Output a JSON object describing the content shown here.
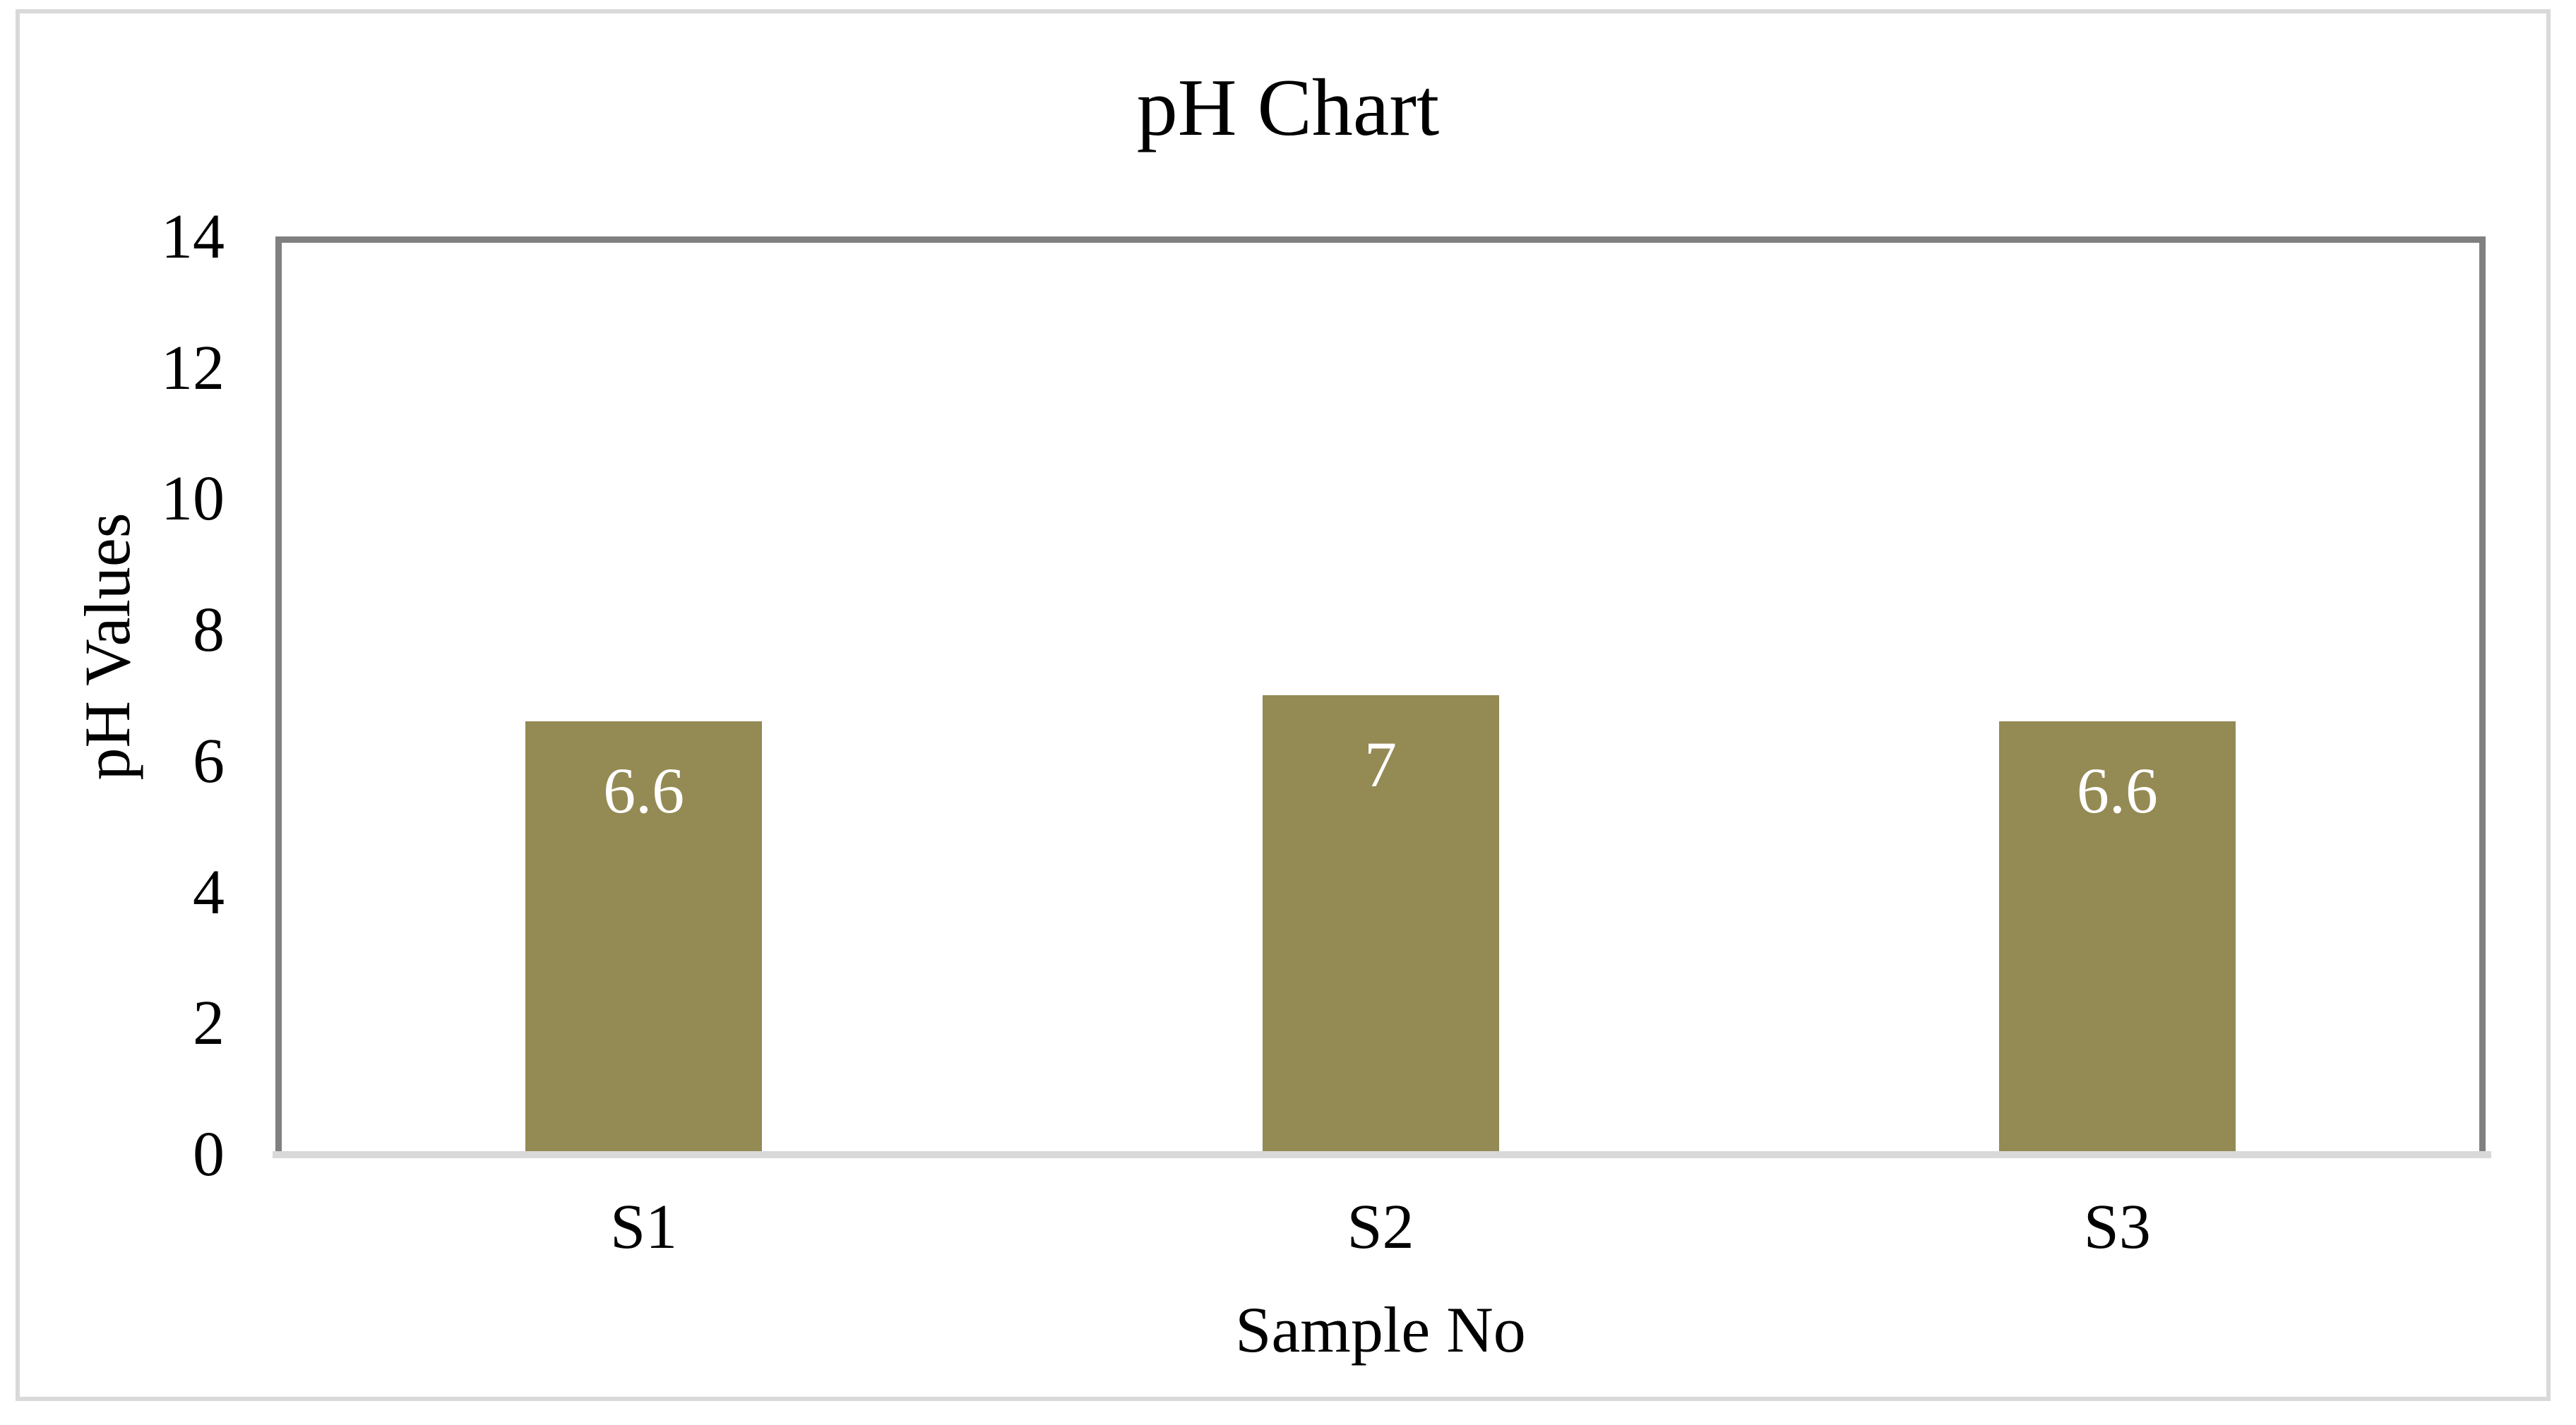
{
  "chart_data": {
    "type": "bar",
    "title": "pH Chart",
    "xlabel": "Sample No",
    "ylabel": "pH Values",
    "categories": [
      "S1",
      "S2",
      "S3"
    ],
    "values": [
      6.6,
      7,
      6.6
    ],
    "data_labels": [
      "6.6",
      "7",
      "6.6"
    ],
    "ylim": [
      0,
      14
    ],
    "ytick_step": 2,
    "yticks": [
      0,
      2,
      4,
      6,
      8,
      10,
      12,
      14
    ],
    "grid": false,
    "legend_position": "none",
    "colors": {
      "bar_fill": "#948a54",
      "data_label_text": "#ffffff",
      "plot_border": "#808080",
      "x_axis_line": "#d9d9d9",
      "figure_border": "#d9d9d9",
      "text": "#000000",
      "background": "#ffffff"
    }
  }
}
